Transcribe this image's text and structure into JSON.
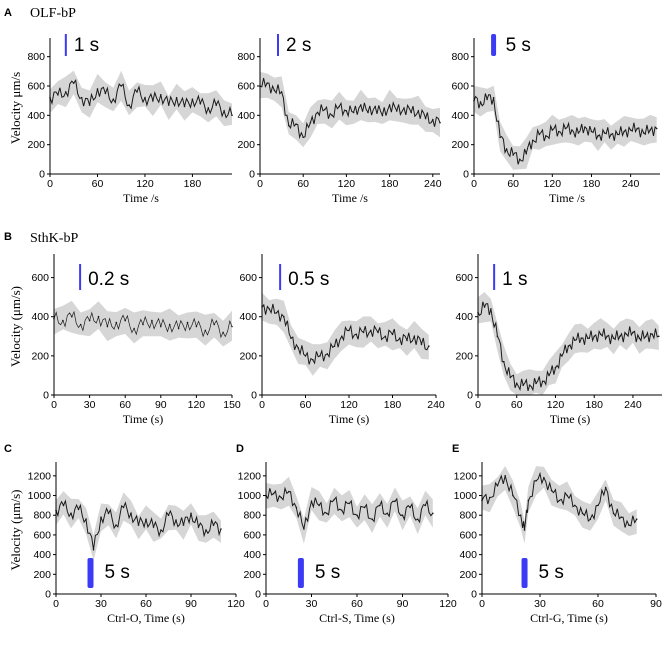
{
  "figure": {
    "panel_letters": [
      "A",
      "B",
      "C",
      "D",
      "E"
    ],
    "row_titles": {
      "A": "OLF-bP",
      "B": "SthK-bP"
    },
    "colors": {
      "trace": "#1a1a1a",
      "error_band": "#c8c8c8",
      "stimulus": "#3b3bf5",
      "axis": "#000000"
    }
  },
  "chart_data": [
    {
      "id": "A1",
      "type": "line",
      "panel": "A",
      "title": "",
      "xlabel": "Time /s",
      "ylabel": "Velocity μm/s",
      "xlim": [
        0,
        230
      ],
      "ylim": [
        0,
        900
      ],
      "xticks": [
        0,
        60,
        120,
        180
      ],
      "yticks": [
        0,
        200,
        400,
        600,
        800
      ],
      "stimulus": {
        "label": "1 s",
        "t_start": 20,
        "duration_s": 1
      },
      "x": [
        0,
        10,
        20,
        30,
        40,
        50,
        60,
        70,
        80,
        90,
        100,
        110,
        120,
        130,
        140,
        150,
        160,
        170,
        180,
        190,
        200,
        210,
        220,
        230
      ],
      "series": [
        {
          "values": [
            520,
            540,
            560,
            620,
            520,
            470,
            580,
            550,
            510,
            600,
            470,
            560,
            520,
            500,
            540,
            470,
            520,
            460,
            510,
            480,
            450,
            470,
            430,
            400
          ]
        }
      ]
    },
    {
      "id": "A2",
      "type": "line",
      "panel": "A",
      "title": "",
      "xlabel": "Time /s",
      "ylabel": "",
      "xlim": [
        0,
        250
      ],
      "ylim": [
        0,
        900
      ],
      "xticks": [
        0,
        60,
        120,
        180,
        240
      ],
      "yticks": [
        0,
        200,
        400,
        600,
        800
      ],
      "stimulus": {
        "label": "2 s",
        "t_start": 25,
        "duration_s": 2
      },
      "x": [
        0,
        10,
        20,
        30,
        40,
        50,
        60,
        70,
        80,
        90,
        100,
        110,
        120,
        130,
        140,
        150,
        160,
        170,
        180,
        190,
        200,
        210,
        220,
        230,
        240,
        250
      ],
      "series": [
        {
          "values": [
            600,
            620,
            570,
            560,
            330,
            340,
            250,
            350,
            420,
            440,
            400,
            460,
            430,
            420,
            470,
            420,
            460,
            400,
            470,
            430,
            450,
            420,
            430,
            380,
            370,
            350
          ]
        }
      ]
    },
    {
      "id": "A3",
      "type": "line",
      "panel": "A",
      "title": "",
      "xlabel": "Time /s",
      "ylabel": "",
      "xlim": [
        0,
        285
      ],
      "ylim": [
        0,
        900
      ],
      "xticks": [
        0,
        60,
        120,
        180,
        240
      ],
      "yticks": [
        0,
        200,
        400,
        600,
        800
      ],
      "stimulus": {
        "label": "5 s",
        "t_start": 30,
        "duration_s": 5
      },
      "x": [
        0,
        10,
        20,
        30,
        40,
        50,
        60,
        70,
        80,
        90,
        100,
        110,
        120,
        130,
        140,
        150,
        160,
        170,
        180,
        190,
        200,
        210,
        220,
        230,
        240,
        250,
        260,
        270,
        280
      ],
      "series": [
        {
          "values": [
            500,
            490,
            510,
            520,
            250,
            170,
            130,
            100,
            140,
            230,
            270,
            260,
            300,
            290,
            310,
            300,
            280,
            320,
            290,
            260,
            280,
            270,
            270,
            290,
            300,
            310,
            280,
            300,
            310
          ]
        }
      ]
    },
    {
      "id": "B1",
      "type": "line",
      "panel": "B",
      "title": "",
      "xlabel": "Time (s)",
      "ylabel": "Velocity (μm/s)",
      "xlim": [
        0,
        150
      ],
      "ylim": [
        0,
        700
      ],
      "xticks": [
        0,
        30,
        60,
        90,
        120,
        150
      ],
      "yticks": [
        0,
        200,
        400,
        600
      ],
      "stimulus": {
        "label": "0.2 s",
        "t_start": 22,
        "duration_s": 0.2
      },
      "x": [
        0,
        7.5,
        15,
        22.5,
        30,
        37.5,
        45,
        52.5,
        60,
        67.5,
        75,
        82.5,
        90,
        97.5,
        105,
        112.5,
        120,
        127.5,
        135,
        142.5,
        150
      ],
      "series": [
        {
          "values": [
            390,
            380,
            400,
            360,
            380,
            400,
            350,
            370,
            380,
            340,
            360,
            380,
            350,
            360,
            340,
            370,
            350,
            330,
            360,
            320,
            350
          ]
        }
      ]
    },
    {
      "id": "B2",
      "type": "line",
      "panel": "B",
      "title": "",
      "xlabel": "Time (s)",
      "ylabel": "",
      "xlim": [
        0,
        240
      ],
      "ylim": [
        0,
        700
      ],
      "xticks": [
        0,
        60,
        120,
        180,
        240
      ],
      "yticks": [
        0,
        200,
        400,
        600
      ],
      "stimulus": {
        "label": "0.5 s",
        "t_start": 25,
        "duration_s": 0.5
      },
      "x": [
        0,
        10,
        20,
        30,
        40,
        50,
        60,
        70,
        80,
        90,
        100,
        110,
        120,
        130,
        140,
        150,
        160,
        170,
        180,
        190,
        200,
        210,
        220,
        230
      ],
      "series": [
        {
          "values": [
            450,
            440,
            420,
            400,
            290,
            240,
            200,
            180,
            200,
            210,
            250,
            300,
            330,
            310,
            320,
            330,
            320,
            300,
            310,
            290,
            280,
            300,
            260,
            250
          ]
        }
      ]
    },
    {
      "id": "B3",
      "type": "line",
      "panel": "B",
      "title": "",
      "xlabel": "Time (s)",
      "ylabel": "",
      "xlim": [
        0,
        285
      ],
      "ylim": [
        0,
        700
      ],
      "xticks": [
        0,
        60,
        120,
        180,
        240
      ],
      "yticks": [
        0,
        200,
        400,
        600
      ],
      "stimulus": {
        "label": "1 s",
        "t_start": 25,
        "duration_s": 1
      },
      "x": [
        0,
        10,
        20,
        30,
        40,
        50,
        60,
        70,
        80,
        90,
        100,
        110,
        120,
        130,
        140,
        150,
        160,
        170,
        180,
        190,
        200,
        210,
        220,
        230,
        240,
        250,
        260,
        270,
        280
      ],
      "series": [
        {
          "values": [
            420,
            450,
            440,
            300,
            170,
            90,
            60,
            50,
            50,
            60,
            70,
            100,
            140,
            200,
            250,
            280,
            290,
            290,
            300,
            310,
            300,
            290,
            300,
            310,
            320,
            290,
            300,
            310,
            300
          ]
        }
      ]
    },
    {
      "id": "C",
      "type": "line",
      "panel": "C",
      "title": "",
      "xlabel": "Ctrl-O, Time  (s)",
      "ylabel": "Velocity (μm/s)",
      "xlim": [
        0,
        120
      ],
      "ylim": [
        0,
        1300
      ],
      "xticks": [
        0,
        30,
        60,
        90,
        120
      ],
      "yticks": [
        0,
        200,
        400,
        600,
        800,
        1000,
        1200
      ],
      "stimulus": {
        "label": "5 s",
        "t_start": 23,
        "duration_s": 5
      },
      "x": [
        0,
        5,
        10,
        15,
        20,
        25,
        30,
        35,
        40,
        45,
        50,
        55,
        60,
        65,
        70,
        75,
        80,
        85,
        90,
        95,
        100,
        105,
        110
      ],
      "series": [
        {
          "values": [
            850,
            900,
            820,
            860,
            760,
            450,
            780,
            820,
            700,
            880,
            820,
            700,
            760,
            680,
            650,
            800,
            750,
            700,
            820,
            680,
            650,
            700,
            660
          ]
        }
      ]
    },
    {
      "id": "D",
      "type": "line",
      "panel": "D",
      "title": "",
      "xlabel": "Ctrl-S, Time (s)",
      "ylabel": "",
      "xlim": [
        0,
        120
      ],
      "ylim": [
        0,
        1300
      ],
      "xticks": [
        0,
        30,
        60,
        90,
        120
      ],
      "yticks": [
        0,
        200,
        400,
        600,
        800,
        1000,
        1200
      ],
      "stimulus": {
        "label": "5 s",
        "t_start": 23,
        "duration_s": 5
      },
      "x": [
        0,
        5,
        10,
        15,
        20,
        25,
        30,
        35,
        40,
        45,
        50,
        55,
        60,
        65,
        70,
        75,
        80,
        85,
        90,
        95,
        100,
        105,
        110
      ],
      "series": [
        {
          "values": [
            1000,
            1020,
            980,
            1040,
            880,
            660,
            940,
            900,
            820,
            960,
            850,
            920,
            800,
            880,
            760,
            900,
            820,
            940,
            800,
            880,
            760,
            900,
            820
          ]
        }
      ]
    },
    {
      "id": "E",
      "type": "line",
      "panel": "E",
      "title": "",
      "xlabel": "Ctrl-G, Time (s)",
      "ylabel": "",
      "xlim": [
        0,
        90
      ],
      "ylim": [
        0,
        1300
      ],
      "xticks": [
        0,
        30,
        60,
        90
      ],
      "yticks": [
        0,
        200,
        400,
        600,
        800,
        1000,
        1200
      ],
      "stimulus": {
        "label": "5 s",
        "t_start": 22,
        "duration_s": 5
      },
      "x": [
        0,
        4,
        8,
        12,
        16,
        20,
        22,
        24,
        28,
        32,
        36,
        40,
        44,
        48,
        52,
        56,
        60,
        64,
        68,
        72,
        76,
        80
      ],
      "series": [
        {
          "values": [
            950,
            980,
            1100,
            1200,
            1000,
            800,
            650,
            950,
            1150,
            1180,
            1050,
            950,
            1000,
            900,
            820,
            760,
            900,
            1080,
            820,
            780,
            700,
            760
          ]
        }
      ]
    }
  ]
}
